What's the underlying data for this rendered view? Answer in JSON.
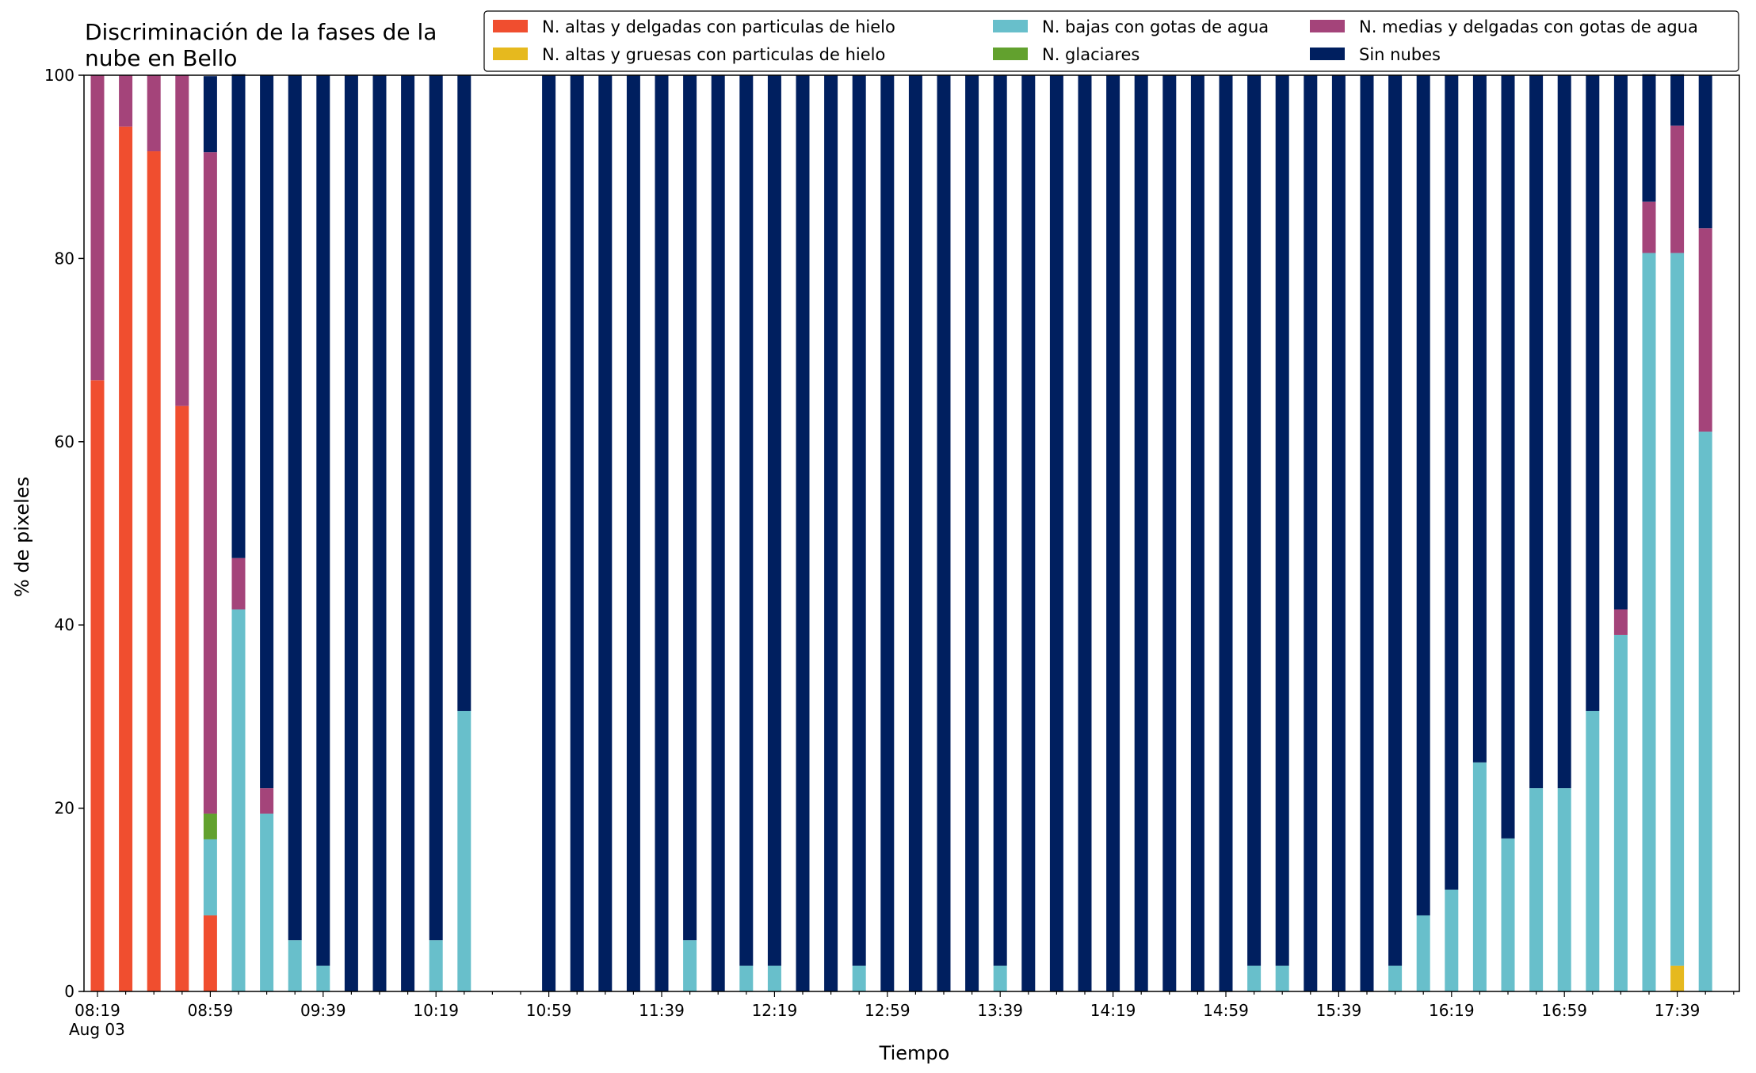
{
  "chart_data": {
    "type": "bar",
    "stacked": true,
    "title_line1": "Discriminación de la fases de la",
    "title_line2": "nube en Bello",
    "xlabel": "Tiempo",
    "ylabel": "% de pixeles",
    "ylim": [
      0,
      100
    ],
    "yticks": [
      0,
      20,
      40,
      60,
      80,
      100
    ],
    "grid": false,
    "legend_position": "top-right",
    "x_date_label": "Aug 03",
    "xtick_labels": [
      "08:19",
      "08:59",
      "09:39",
      "10:19",
      "10:59",
      "11:39",
      "12:19",
      "12:59",
      "13:39",
      "14:19",
      "14:59",
      "15:39",
      "16:19",
      "16:59",
      "17:39"
    ],
    "x": [
      "08:19",
      "08:29",
      "08:39",
      "08:49",
      "08:59",
      "09:09",
      "09:19",
      "09:29",
      "09:39",
      "09:49",
      "09:59",
      "10:09",
      "10:19",
      "10:29",
      "10:39",
      "10:49",
      "10:59",
      "11:09",
      "11:19",
      "11:29",
      "11:39",
      "11:49",
      "11:59",
      "12:09",
      "12:19",
      "12:29",
      "12:39",
      "12:49",
      "12:59",
      "13:09",
      "13:19",
      "13:29",
      "13:39",
      "13:49",
      "13:59",
      "14:09",
      "14:19",
      "14:29",
      "14:39",
      "14:49",
      "14:59",
      "15:09",
      "15:19",
      "15:29",
      "15:39",
      "15:49",
      "15:59",
      "16:09",
      "16:19",
      "16:29",
      "16:39",
      "16:49",
      "16:59",
      "17:09",
      "17:19",
      "17:29",
      "17:39",
      "17:49"
    ],
    "series": [
      {
        "name": "N. altas y delgadas con particulas de hielo",
        "color": "#f04e2f",
        "values": [
          66.7,
          94.4,
          91.7,
          63.9,
          8.3,
          0,
          0,
          0,
          0,
          0,
          0,
          0,
          0,
          0,
          0,
          0,
          0,
          0,
          0,
          0,
          0,
          0,
          0,
          0,
          0,
          0,
          0,
          0,
          0,
          0,
          0,
          0,
          0,
          0,
          0,
          0,
          0,
          0,
          0,
          0,
          0,
          0,
          0,
          0,
          0,
          0,
          0,
          0,
          0,
          0,
          0,
          0,
          0,
          0,
          0,
          0,
          0,
          0
        ]
      },
      {
        "name": "N. altas y gruesas con particulas de hielo",
        "color": "#e6b91e",
        "values": [
          0,
          0,
          0,
          0,
          0,
          0,
          0,
          0,
          0,
          0,
          0,
          0,
          0,
          0,
          0,
          0,
          0,
          0,
          0,
          0,
          0,
          0,
          0,
          0,
          0,
          0,
          0,
          0,
          0,
          0,
          0,
          0,
          0,
          0,
          0,
          0,
          0,
          0,
          0,
          0,
          0,
          0,
          0,
          0,
          0,
          0,
          0,
          0,
          0,
          0,
          0,
          0,
          0,
          0,
          0,
          0,
          2.8,
          0
        ]
      },
      {
        "name": "N. bajas con gotas de agua",
        "color": "#68bfcb",
        "values": [
          0,
          0,
          0,
          0,
          8.3,
          41.7,
          19.4,
          5.6,
          2.8,
          0,
          0,
          0,
          5.6,
          30.6,
          0,
          0,
          0,
          0,
          0,
          0,
          0,
          5.6,
          0,
          2.8,
          2.8,
          0,
          0,
          2.8,
          0,
          0,
          0,
          0,
          2.8,
          0,
          0,
          0,
          0,
          0,
          0,
          0,
          0,
          2.8,
          2.8,
          0,
          0,
          0,
          2.8,
          8.3,
          11.1,
          25.0,
          16.7,
          22.2,
          22.2,
          30.6,
          38.9,
          80.6,
          77.8,
          61.1
        ]
      },
      {
        "name": "N. glaciares",
        "color": "#62a12e",
        "values": [
          0,
          0,
          0,
          0,
          2.8,
          0,
          0,
          0,
          0,
          0,
          0,
          0,
          0,
          0,
          0,
          0,
          0,
          0,
          0,
          0,
          0,
          0,
          0,
          0,
          0,
          0,
          0,
          0,
          0,
          0,
          0,
          0,
          0,
          0,
          0,
          0,
          0,
          0,
          0,
          0,
          0,
          0,
          0,
          0,
          0,
          0,
          0,
          0,
          0,
          0,
          0,
          0,
          0,
          0,
          0,
          0,
          0,
          0
        ]
      },
      {
        "name": "N. medias y delgadas con gotas de agua",
        "color": "#a4447a",
        "values": [
          33.3,
          5.6,
          8.3,
          36.1,
          72.2,
          5.6,
          2.8,
          0,
          0,
          0,
          0,
          0,
          0,
          0,
          0,
          0,
          0,
          0,
          0,
          0,
          0,
          0,
          0,
          0,
          0,
          0,
          0,
          0,
          0,
          0,
          0,
          0,
          0,
          0,
          0,
          0,
          0,
          0,
          0,
          0,
          0,
          0,
          0,
          0,
          0,
          0,
          0,
          0,
          0,
          0,
          0,
          0,
          0,
          0,
          2.8,
          5.6,
          13.9,
          22.2
        ]
      },
      {
        "name": "Sin nubes",
        "color": "#001f5f",
        "values": [
          0,
          0,
          0,
          0,
          8.3,
          52.8,
          77.8,
          94.4,
          97.2,
          100,
          100,
          100,
          94.4,
          69.4,
          0,
          0,
          100,
          100,
          100,
          100,
          100,
          94.4,
          100,
          97.2,
          97.2,
          100,
          100,
          97.2,
          100,
          100,
          100,
          100,
          97.2,
          100,
          100,
          100,
          100,
          100,
          100,
          100,
          100,
          97.2,
          97.2,
          100,
          100,
          100,
          97.2,
          91.7,
          88.9,
          75.0,
          83.3,
          77.8,
          77.8,
          69.4,
          58.3,
          13.9,
          5.6,
          16.7
        ]
      }
    ]
  }
}
